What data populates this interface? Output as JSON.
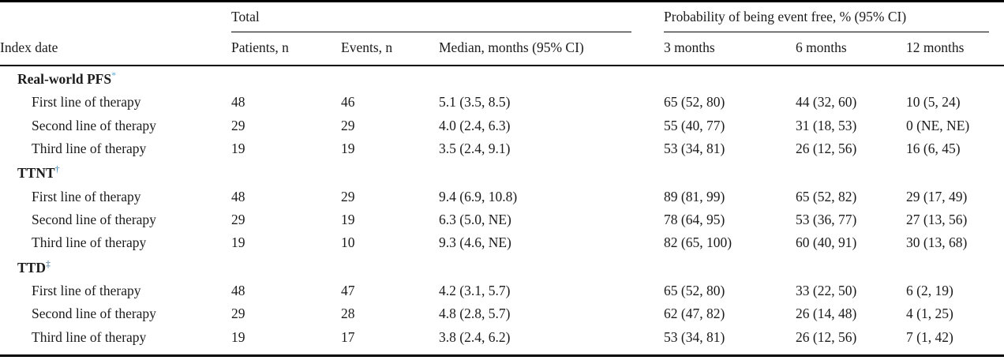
{
  "page": {
    "background": "#ffffff",
    "text_color": "#1b1b1b",
    "rule_color": "#000000"
  },
  "table": {
    "group_headers": {
      "total": "Total",
      "probability": "Probability of being event free, % (95% CI)"
    },
    "columns": [
      "Index date",
      "Patients, n",
      "Events, n",
      "Median, months (95% CI)",
      "3 months",
      "6 months",
      "12 months"
    ],
    "sections": [
      {
        "label": "Real-world PFS",
        "marker": "*",
        "marker_color": "#5fa8d0",
        "rows": [
          {
            "label": "First line of therapy",
            "patients": "48",
            "events": "46",
            "median": "5.1 (3.5, 8.5)",
            "m3": "65 (52, 80)",
            "m6": "44 (32, 60)",
            "m12": "10 (5, 24)"
          },
          {
            "label": "Second line of therapy",
            "patients": "29",
            "events": "29",
            "median": "4.0 (2.4, 6.3)",
            "m3": "55 (40, 77)",
            "m6": "31 (18, 53)",
            "m12": "0 (NE, NE)"
          },
          {
            "label": "Third line of therapy",
            "patients": "19",
            "events": "19",
            "median": "3.5 (2.4, 9.1)",
            "m3": "53 (34, 81)",
            "m6": "26 (12, 56)",
            "m12": "16 (6, 45)"
          }
        ]
      },
      {
        "label": "TTNT",
        "marker": "†",
        "marker_color": "#2f7fb5",
        "rows": [
          {
            "label": "First line of therapy",
            "patients": "48",
            "events": "29",
            "median": "9.4 (6.9, 10.8)",
            "m3": "89 (81, 99)",
            "m6": "65 (52, 82)",
            "m12": "29 (17, 49)"
          },
          {
            "label": "Second line of therapy",
            "patients": "29",
            "events": "19",
            "median": "6.3 (5.0, NE)",
            "m3": "78 (64, 95)",
            "m6": "53 (36, 77)",
            "m12": "27 (13, 56)"
          },
          {
            "label": "Third line of therapy",
            "patients": "19",
            "events": "10",
            "median": "9.3 (4.6, NE)",
            "m3": "82 (65, 100)",
            "m6": "60 (40, 91)",
            "m12": "30 (13, 68)"
          }
        ]
      },
      {
        "label": "TTD",
        "marker": "‡",
        "marker_color": "#3d6c8e",
        "rows": [
          {
            "label": "First line of therapy",
            "patients": "48",
            "events": "47",
            "median": "4.2 (3.1, 5.7)",
            "m3": "65 (52, 80)",
            "m6": "33 (22, 50)",
            "m12": "6 (2, 19)"
          },
          {
            "label": "Second line of therapy",
            "patients": "29",
            "events": "28",
            "median": "4.8 (2.8, 5.7)",
            "m3": "62 (47, 82)",
            "m6": "26 (14, 48)",
            "m12": "4 (1, 25)"
          },
          {
            "label": "Third line of therapy",
            "patients": "19",
            "events": "17",
            "median": "3.8 (2.4, 6.2)",
            "m3": "53 (34, 81)",
            "m6": "26 (12, 56)",
            "m12": "7 (1, 42)"
          }
        ]
      }
    ]
  }
}
